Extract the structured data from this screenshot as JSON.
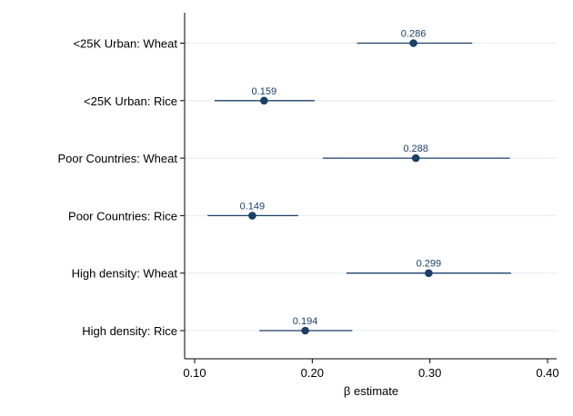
{
  "chart_data": {
    "type": "scatter",
    "subtype": "coefficient-plot",
    "xlabel": "β estimate",
    "ylabel": "",
    "title": "",
    "xlim": [
      0.1,
      0.4
    ],
    "xticks": [
      "0.10",
      "0.20",
      "0.30",
      "0.40"
    ],
    "grid": true,
    "colors": {
      "marker": "#1b3f67",
      "grid": "#eaeef3",
      "axis": "#000000"
    },
    "rows": [
      {
        "label": "<25K Urban: Wheat",
        "estimate": 0.286,
        "estimate_label": "0.286",
        "ci": [
          0.238,
          0.336
        ]
      },
      {
        "label": "<25K Urban: Rice",
        "estimate": 0.159,
        "estimate_label": "0.159",
        "ci": [
          0.117,
          0.202
        ]
      },
      {
        "label": "Poor Countries: Wheat",
        "estimate": 0.288,
        "estimate_label": "0.288",
        "ci": [
          0.209,
          0.368
        ]
      },
      {
        "label": "Poor Countries: Rice",
        "estimate": 0.149,
        "estimate_label": "0.149",
        "ci": [
          0.111,
          0.188
        ]
      },
      {
        "label": "High density: Wheat",
        "estimate": 0.299,
        "estimate_label": "0.299",
        "ci": [
          0.229,
          0.369
        ]
      },
      {
        "label": "High density: Rice",
        "estimate": 0.194,
        "estimate_label": "0.194",
        "ci": [
          0.155,
          0.234
        ]
      }
    ]
  }
}
